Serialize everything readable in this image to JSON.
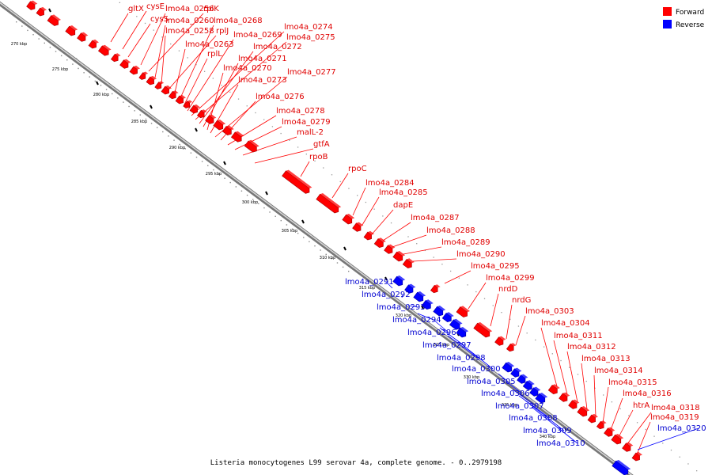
{
  "caption": "Listeria monocytogenes L99 serovar 4a, complete genome. - 0..2979198",
  "legend": [
    {
      "label": "Forward",
      "color": "#ff0000"
    },
    {
      "label": "Reverse",
      "color": "#0000ff"
    }
  ],
  "colors": {
    "forward": "#ff0000",
    "reverse": "#0000ff",
    "dark_forward": "#a00000",
    "dark_reverse": "#0000a0",
    "backbone": "#888888"
  },
  "ticks": [
    {
      "label": "270 kbp"
    },
    {
      "label": "275 kbp"
    },
    {
      "label": "280 kbp"
    },
    {
      "label": "285 kbp"
    },
    {
      "label": "290 kbp"
    },
    {
      "label": "295 kbp"
    },
    {
      "label": "300 kbp"
    },
    {
      "label": "305 kbp"
    },
    {
      "label": "310 kbp"
    },
    {
      "label": "315 kbp"
    },
    {
      "label": "320 kbp"
    },
    {
      "label": "325 kbp"
    },
    {
      "label": "330 kbp"
    },
    {
      "label": "335 kbp"
    },
    {
      "label": "340 kbp"
    }
  ],
  "forward_genes": [
    {
      "label": "gltX"
    },
    {
      "label": "cysE"
    },
    {
      "label": "cysS"
    },
    {
      "label": "lmo4a_0256"
    },
    {
      "label": "rplK"
    },
    {
      "label": "lmo4a_0260"
    },
    {
      "label": "lmo4a_0258"
    },
    {
      "label": "rplJ"
    },
    {
      "label": "lmo4a_0263"
    },
    {
      "label": "lmo4a_0268"
    },
    {
      "label": "rplL"
    },
    {
      "label": "lmo4a_0269"
    },
    {
      "label": "lmo4a_0274"
    },
    {
      "label": "lmo4a_0275"
    },
    {
      "label": "lmo4a_0272"
    },
    {
      "label": "lmo4a_0271"
    },
    {
      "label": "lmo4a_0270"
    },
    {
      "label": "lmo4a_0273"
    },
    {
      "label": "lmo4a_0277"
    },
    {
      "label": "lmo4a_0276"
    },
    {
      "label": "lmo4a_0278"
    },
    {
      "label": "lmo4a_0279"
    },
    {
      "label": "malL-2"
    },
    {
      "label": "gtfA"
    },
    {
      "label": "rpoB"
    },
    {
      "label": "rpoC"
    },
    {
      "label": "lmo4a_0284"
    },
    {
      "label": "lmo4a_0285"
    },
    {
      "label": "dapE"
    },
    {
      "label": "lmo4a_0287"
    },
    {
      "label": "lmo4a_0288"
    },
    {
      "label": "lmo4a_0289"
    },
    {
      "label": "lmo4a_0290"
    },
    {
      "label": "lmo4a_0295"
    },
    {
      "label": "lmo4a_0299"
    },
    {
      "label": "nrdD"
    },
    {
      "label": "nrdG"
    },
    {
      "label": "lmo4a_0303"
    },
    {
      "label": "lmo4a_0304"
    },
    {
      "label": "lmo4a_0311"
    },
    {
      "label": "lmo4a_0312"
    },
    {
      "label": "lmo4a_0313"
    },
    {
      "label": "lmo4a_0314"
    },
    {
      "label": "lmo4a_0315"
    },
    {
      "label": "lmo4a_0316"
    },
    {
      "label": "htrA"
    },
    {
      "label": "lmo4a_0318"
    },
    {
      "label": "lmo4a_0319"
    }
  ],
  "reverse_genes": [
    {
      "label": "lmo4a_0291"
    },
    {
      "label": "lmo4a_0292"
    },
    {
      "label": "lmo4a_0293"
    },
    {
      "label": "lmo4a_0294"
    },
    {
      "label": "lmo4a_0296"
    },
    {
      "label": "lmo4a_0297"
    },
    {
      "label": "lmo4a_0298"
    },
    {
      "label": "lmo4a_0300"
    },
    {
      "label": "lmo4a_0305"
    },
    {
      "label": "lmo4a_0306"
    },
    {
      "label": "lmo4a_0307"
    },
    {
      "label": "lmo4a_0308"
    },
    {
      "label": "lmo4a_0309"
    },
    {
      "label": "lmo4a_0310"
    },
    {
      "label": "lmo4a_0320"
    }
  ]
}
